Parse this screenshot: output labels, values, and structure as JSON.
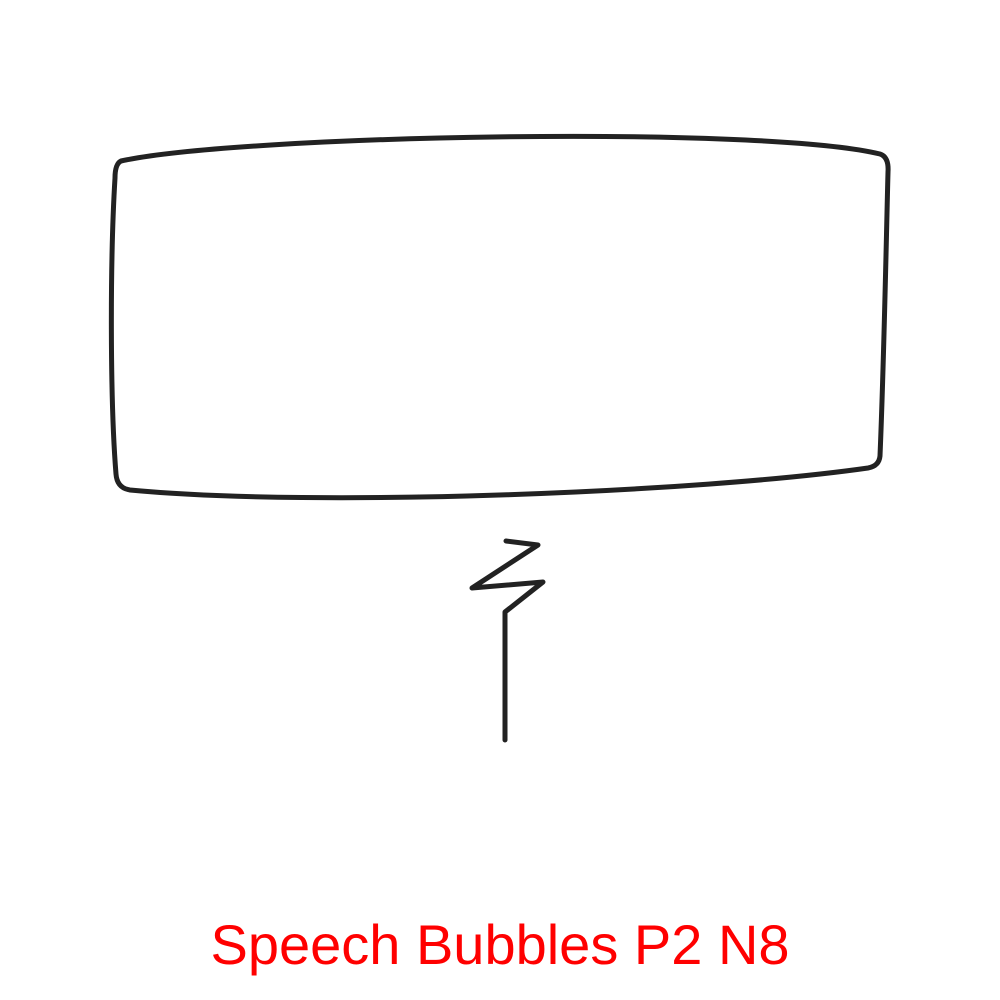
{
  "caption": {
    "text": "Speech Bubbles P2 N8",
    "color": "#ff0000"
  },
  "bubble": {
    "shape": "rectangle",
    "tail_style": "lightning-zigzag",
    "stroke_color": "#222222",
    "fill_color": "#ffffff"
  }
}
